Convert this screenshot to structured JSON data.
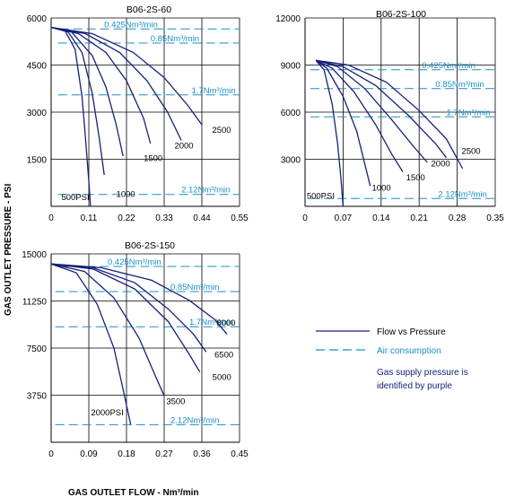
{
  "y_axis_title": "GAS OUTLET PRESSURE - PSI",
  "x_axis_title": "GAS OUTLET FLOW - Nm³/min",
  "legend": {
    "flow_label": "Flow vs Pressure",
    "air_label": "Air consumption",
    "note_line1": "Gas supply pressure is",
    "note_line2": "identified by purple"
  },
  "colors": {
    "flow": "#16207a",
    "air": "#1a8fc4",
    "grid": "#000000"
  },
  "chart_data": [
    {
      "type": "line",
      "title": "B06-2S-60",
      "xlim": [
        0,
        0.55
      ],
      "ylim": [
        0,
        6000
      ],
      "xticks": [
        "0",
        "0.11",
        "0.22",
        "0.33",
        "0.44",
        "0.55"
      ],
      "yticks": [
        "1500",
        "3000",
        "4500",
        "6000"
      ],
      "series": [
        {
          "name": "500PSI",
          "x": [
            0,
            0.04,
            0.07,
            0.09,
            0.1,
            0.11,
            0.115
          ],
          "y": [
            5700,
            5600,
            5000,
            3500,
            2200,
            800,
            0
          ]
        },
        {
          "name": "1000",
          "x": [
            0,
            0.05,
            0.09,
            0.12,
            0.14,
            0.155
          ],
          "y": [
            5700,
            5550,
            4900,
            3600,
            2200,
            1000
          ]
        },
        {
          "name": "1500",
          "x": [
            0,
            0.06,
            0.12,
            0.16,
            0.19,
            0.21
          ],
          "y": [
            5700,
            5550,
            4800,
            3800,
            2600,
            1600
          ]
        },
        {
          "name": "2000",
          "x": [
            0,
            0.08,
            0.16,
            0.22,
            0.27,
            0.29
          ],
          "y": [
            5700,
            5500,
            4900,
            4000,
            2800,
            2000
          ]
        },
        {
          "name": "",
          "x": [
            0,
            0.1,
            0.2,
            0.28,
            0.34,
            0.38
          ],
          "y": [
            5700,
            5500,
            4900,
            4000,
            3000,
            2100
          ]
        },
        {
          "name": "2500",
          "x": [
            0,
            0.12,
            0.24,
            0.33,
            0.4,
            0.44
          ],
          "y": [
            5700,
            5500,
            4900,
            4100,
            3200,
            2600
          ]
        }
      ],
      "series_labels": [
        {
          "text": "500PSI",
          "x": 0.03,
          "y": 200
        },
        {
          "text": "1000",
          "x": 0.19,
          "y": 300
        },
        {
          "text": "1500",
          "x": 0.27,
          "y": 1450
        },
        {
          "text": "2000",
          "x": 0.36,
          "y": 1850
        },
        {
          "text": "2500",
          "x": 0.47,
          "y": 2350
        }
      ],
      "air_lines": [
        {
          "label": "0.425Nm³/min",
          "y": 5650,
          "x_start": 0.025,
          "label_x": 0.155
        },
        {
          "label": "0.85Nm³/min",
          "y": 5200,
          "x_start": 0.02,
          "label_x": 0.29
        },
        {
          "label": "1.7Nm³/min",
          "y": 3550,
          "x_start": 0.02,
          "label_x": 0.41
        },
        {
          "label": "2.12Nm³/min",
          "y": 380,
          "x_start": 0.02,
          "label_x": 0.38
        }
      ]
    },
    {
      "type": "line",
      "title": "B06-2S-100",
      "xlim": [
        0,
        0.35
      ],
      "ylim": [
        0,
        12000
      ],
      "xticks": [
        "0",
        "0.07",
        "0.14",
        "0.21",
        "0.28",
        "0.35"
      ],
      "yticks": [
        "3000",
        "6000",
        "9000",
        "12000"
      ],
      "series": [
        {
          "name": "500PSI",
          "x": [
            0.02,
            0.035,
            0.05,
            0.06,
            0.066,
            0.07
          ],
          "y": [
            9300,
            8700,
            6500,
            4000,
            1800,
            0
          ]
        },
        {
          "name": "1000",
          "x": [
            0.02,
            0.04,
            0.07,
            0.095,
            0.11,
            0.12
          ],
          "y": [
            9300,
            8800,
            7000,
            4800,
            2700,
            1300
          ]
        },
        {
          "name": "1500",
          "x": [
            0.02,
            0.05,
            0.09,
            0.13,
            0.16,
            0.18
          ],
          "y": [
            9300,
            8800,
            7300,
            5200,
            3300,
            2200
          ]
        },
        {
          "name": "2000",
          "x": [
            0.02,
            0.06,
            0.11,
            0.16,
            0.2,
            0.225
          ],
          "y": [
            9300,
            8900,
            7500,
            5500,
            3800,
            2800
          ]
        },
        {
          "name": "",
          "x": [
            0.02,
            0.07,
            0.13,
            0.19,
            0.24,
            0.26
          ],
          "y": [
            9300,
            8900,
            7700,
            5800,
            4000,
            3100
          ]
        },
        {
          "name": "2500",
          "x": [
            0.02,
            0.08,
            0.15,
            0.21,
            0.26,
            0.29
          ],
          "y": [
            9300,
            9000,
            7900,
            6100,
            4300,
            2400
          ]
        }
      ],
      "series_labels": [
        {
          "text": "500PSI",
          "x": 0.003,
          "y": 500
        },
        {
          "text": "1000",
          "x": 0.123,
          "y": 1000
        },
        {
          "text": "1500",
          "x": 0.186,
          "y": 1650
        },
        {
          "text": "2000",
          "x": 0.232,
          "y": 2550
        },
        {
          "text": "2500",
          "x": 0.288,
          "y": 3350
        }
      ],
      "air_lines": [
        {
          "label": "0.425Nm³/min",
          "y": 8700,
          "x_start": 0.01,
          "label_x": 0.215
        },
        {
          "label": "0.85Nm³/min",
          "y": 7500,
          "x_start": 0.01,
          "label_x": 0.24
        },
        {
          "label": "1.7Nm³/min",
          "y": 5700,
          "x_start": 0.01,
          "label_x": 0.26
        },
        {
          "label": "2.12Nm³/min",
          "y": 500,
          "x_start": 0.01,
          "label_x": 0.245
        }
      ]
    },
    {
      "type": "line",
      "title": "B06-2S-150",
      "xlim": [
        0,
        0.45
      ],
      "ylim": [
        0,
        15000
      ],
      "xticks": [
        "0",
        "0.09",
        "0.18",
        "0.27",
        "0.36",
        "0.45"
      ],
      "yticks": [
        "3750",
        "7500",
        "11250",
        "15000"
      ],
      "series": [
        {
          "name": "2000PSI",
          "x": [
            0,
            0.06,
            0.11,
            0.15,
            0.17,
            0.19
          ],
          "y": [
            14200,
            13500,
            11000,
            7500,
            4500,
            1400
          ]
        },
        {
          "name": "3500",
          "x": [
            0,
            0.08,
            0.15,
            0.21,
            0.25,
            0.27
          ],
          "y": [
            14200,
            13600,
            11500,
            8300,
            5200,
            3700
          ]
        },
        {
          "name": "5000",
          "x": [
            0,
            0.1,
            0.2,
            0.28,
            0.33,
            0.355
          ],
          "y": [
            14200,
            13800,
            12200,
            9600,
            7000,
            5600
          ]
        },
        {
          "name": "6500",
          "x": [
            0,
            0.1,
            0.2,
            0.28,
            0.34,
            0.37
          ],
          "y": [
            14200,
            13900,
            12700,
            10600,
            8600,
            7200
          ]
        },
        {
          "name": "8000",
          "x": [
            0,
            0.12,
            0.24,
            0.33,
            0.39,
            0.42
          ],
          "y": [
            14200,
            13900,
            12900,
            11300,
            9800,
            8600
          ]
        }
      ],
      "series_labels": [
        {
          "text": "2000PSI",
          "x": 0.095,
          "y": 2150
        },
        {
          "text": "3500",
          "x": 0.275,
          "y": 3050
        },
        {
          "text": "5000",
          "x": 0.385,
          "y": 4950
        },
        {
          "text": "6500",
          "x": 0.39,
          "y": 6750
        },
        {
          "text": "8000",
          "x": 0.395,
          "y": 9300
        }
      ],
      "air_lines": [
        {
          "label": "0.425Nm³/min",
          "y": 14000,
          "x_start": 0.02,
          "label_x": 0.135
        },
        {
          "label": "0.85Nm³/min",
          "y": 12000,
          "x_start": 0.01,
          "label_x": 0.285
        },
        {
          "label": "1.7Nm³/min",
          "y": 9200,
          "x_start": 0.01,
          "label_x": 0.33
        },
        {
          "label": "2.12Nm³/min",
          "y": 1400,
          "x_start": 0.01,
          "label_x": 0.285
        }
      ]
    }
  ]
}
